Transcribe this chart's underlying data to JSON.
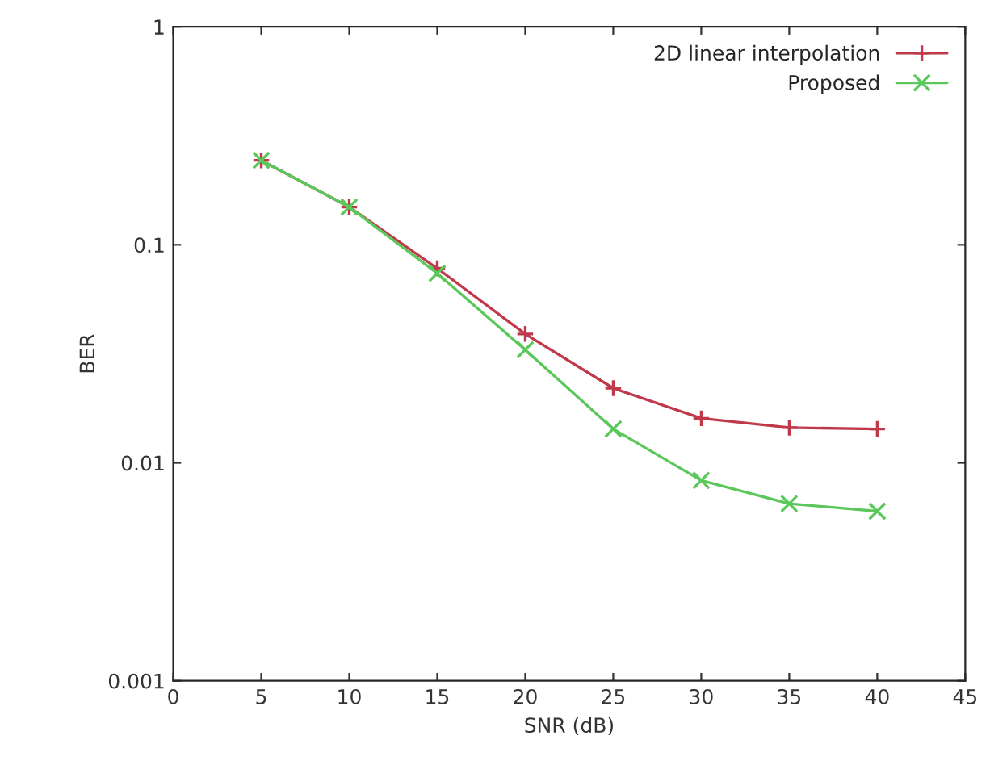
{
  "chart_data": {
    "type": "line",
    "xlabel": "SNR (dB)",
    "ylabel": "BER",
    "log": "y",
    "x": [
      5,
      10,
      15,
      20,
      25,
      30,
      35,
      40
    ],
    "series": [
      {
        "name": "2D linear interpolation",
        "color": "#c0394b",
        "marker": "plus",
        "values": [
          0.244,
          0.149,
          0.078,
          0.039,
          0.022,
          0.016,
          0.0145,
          0.0143
        ]
      },
      {
        "name": "Proposed",
        "color": "#5cc85c",
        "marker": "cross",
        "values": [
          0.244,
          0.149,
          0.074,
          0.033,
          0.0143,
          0.0083,
          0.0065,
          0.006
        ]
      }
    ],
    "xlim": [
      0,
      45
    ],
    "xticks": [
      0,
      5,
      10,
      15,
      20,
      25,
      30,
      35,
      40,
      45
    ],
    "ylim": [
      0.001,
      1
    ],
    "yticks": [
      {
        "value": 0.001,
        "label": "0.001"
      },
      {
        "value": 0.01,
        "label": "0.01"
      },
      {
        "value": 0.1,
        "label": "0.1"
      },
      {
        "value": 1,
        "label": "1"
      }
    ],
    "legend": "top right",
    "grid": false,
    "line_style": "solid"
  }
}
